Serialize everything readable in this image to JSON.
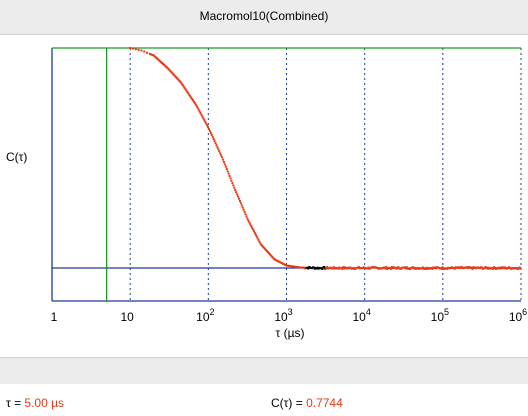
{
  "window": {
    "title": "Macromol10(Combined)"
  },
  "status": {
    "tau_label": "τ = ",
    "tau_value": "5.00 µs",
    "c_label": "C(τ) = ",
    "c_value": "0.7744"
  },
  "colors": {
    "axis": "#1f3a99",
    "grid": "#1f3a99",
    "data": "#e83a1a",
    "data_dark": "#000000",
    "cursor": "#1a9a2a"
  },
  "chart_data": {
    "type": "scatter",
    "title": "Macromol10(Combined)",
    "xlabel": "τ (µs)",
    "ylabel": "C(τ)",
    "xscale": "log",
    "xlim": [
      1,
      1000000
    ],
    "ylim": [
      0,
      1
    ],
    "ylim_note": "",
    "x_ticks": [
      {
        "value": 1,
        "base": "1",
        "exp": ""
      },
      {
        "value": 10,
        "base": "10",
        "exp": ""
      },
      {
        "value": 100,
        "base": "10",
        "exp": "2"
      },
      {
        "value": 1000,
        "base": "10",
        "exp": "3"
      },
      {
        "value": 10000,
        "base": "10",
        "exp": "4"
      },
      {
        "value": 100000,
        "base": "10",
        "exp": "5"
      },
      {
        "value": 1000000,
        "base": "10",
        "exp": "6"
      }
    ],
    "grid_x": [
      10,
      100,
      1000,
      10000,
      100000,
      1000000
    ],
    "grid_style": "dotted vertical",
    "baseline_y": 0.115,
    "upper_y": 1.0,
    "cursor_x": 5,
    "series": [
      {
        "points": [
          [
            10,
            1.0
          ],
          [
            14,
            0.99
          ],
          [
            20,
            0.97
          ],
          [
            30,
            0.92
          ],
          [
            45,
            0.86
          ],
          [
            70,
            0.77
          ],
          [
            100,
            0.68
          ],
          [
            150,
            0.56
          ],
          [
            220,
            0.43
          ],
          [
            320,
            0.31
          ],
          [
            470,
            0.21
          ],
          [
            700,
            0.15
          ],
          [
            1000,
            0.125
          ],
          [
            1500,
            0.117
          ],
          [
            2500,
            0.115
          ],
          [
            10000,
            0.115
          ],
          [
            100000,
            0.115
          ],
          [
            1000000,
            0.115
          ]
        ],
        "dark_range": [
          1800,
          3200
        ]
      }
    ]
  }
}
